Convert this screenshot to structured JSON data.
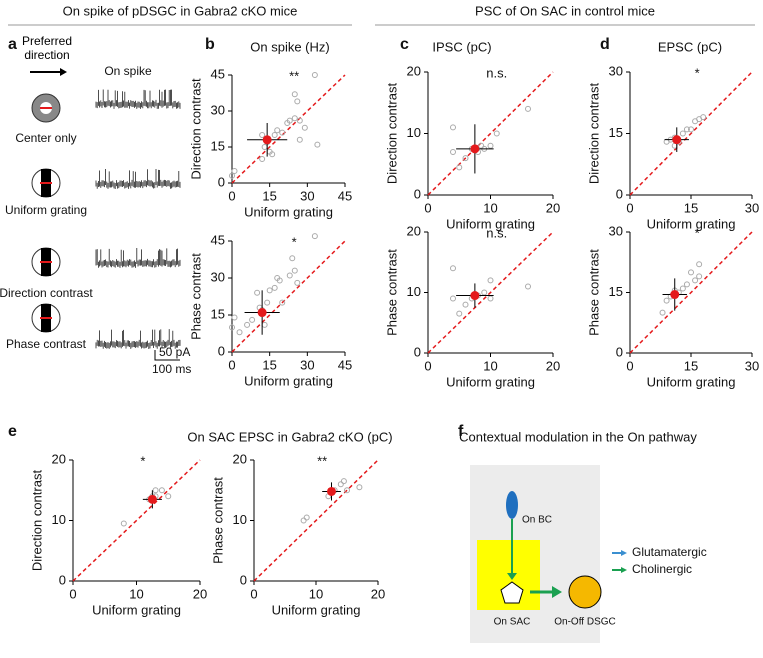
{
  "headers": [
    "On spike of pDSGC in Gabra2 cKO mice",
    "PSC of On SAC in control mice"
  ],
  "panel_labels": [
    "a",
    "b",
    "c",
    "d",
    "e",
    "f"
  ],
  "panel_a": {
    "direction_label": "Preferred direction",
    "trace_title": "On spike",
    "conditions": [
      "Center only",
      "Uniform grating",
      "Direction contrast",
      "Phase contrast"
    ],
    "scale_y": "50 pA",
    "scale_x": "100 ms"
  },
  "panel_f": {
    "title": "Contextual modulation in the On pathway",
    "nodes": [
      "On BC",
      "On SAC",
      "On-Off DSGC"
    ],
    "legend": [
      {
        "name": "Glutamatergic",
        "color": "#3a8fd0"
      },
      {
        "name": "Cholinergic",
        "color": "#1aa050"
      }
    ]
  },
  "chart_data": [
    {
      "type": "scatter",
      "title": "On spike (Hz)",
      "xlabel": "Uniform grating",
      "ylabel": "Direction contrast",
      "annotation": "**",
      "xlim": [
        0,
        45
      ],
      "ylim": [
        0,
        45
      ],
      "xticks": [
        0,
        15,
        30,
        45
      ],
      "yticks": [
        0,
        15,
        30,
        45
      ],
      "color": "#aaaaaa",
      "mean_color": "#e41a1c",
      "x": [
        0,
        1,
        12,
        13,
        14,
        15,
        16,
        17,
        18,
        20,
        22,
        23,
        25,
        25,
        26,
        27,
        27,
        29,
        33,
        34,
        12
      ],
      "y": [
        3,
        5,
        20,
        15,
        17,
        13,
        12,
        20,
        22,
        21,
        25,
        26,
        27,
        37,
        34,
        26,
        18,
        23,
        45,
        16,
        10
      ],
      "mean": {
        "x": 14,
        "y": 18,
        "xerr": 8,
        "yerr": 7
      }
    },
    {
      "type": "scatter",
      "xlabel": "Uniform grating",
      "ylabel": "Phase contrast",
      "annotation": "*",
      "xlim": [
        0,
        45
      ],
      "ylim": [
        0,
        45
      ],
      "xticks": [
        0,
        15,
        30,
        45
      ],
      "yticks": [
        0,
        15,
        30,
        45
      ],
      "color": "#aaaaaa",
      "mean_color": "#e41a1c",
      "x": [
        0,
        1,
        3,
        6,
        8,
        10,
        11,
        12,
        13,
        14,
        15,
        17,
        18,
        19,
        20,
        23,
        24,
        25,
        26,
        33
      ],
      "y": [
        10,
        14,
        8,
        11,
        13,
        24,
        18,
        17,
        11,
        20,
        25,
        26,
        30,
        29,
        20,
        31,
        38,
        33,
        28,
        47
      ],
      "mean": {
        "x": 12,
        "y": 16,
        "xerr": 7,
        "yerr": 9
      }
    },
    {
      "type": "scatter",
      "title": "IPSC (pC)",
      "xlabel": "Uniform grating",
      "ylabel": "Direction contrast",
      "annotation": "n.s.",
      "xlim": [
        0,
        20
      ],
      "ylim": [
        0,
        20
      ],
      "xticks": [
        0,
        10,
        20
      ],
      "yticks": [
        0,
        10,
        20
      ],
      "color": "#aaaaaa",
      "mean_color": "#e41a1c",
      "x": [
        4,
        4,
        5,
        6,
        7,
        8,
        8.5,
        9,
        10,
        11,
        16
      ],
      "y": [
        11,
        7,
        4.5,
        6,
        7.5,
        7,
        8,
        7.5,
        8,
        10,
        14
      ],
      "mean": {
        "x": 7.5,
        "y": 7.5,
        "xerr": 3,
        "yerr": 4
      }
    },
    {
      "type": "scatter",
      "xlabel": "Uniform grating",
      "ylabel": "Phase contrast",
      "annotation": "n.s.",
      "xlim": [
        0,
        20
      ],
      "ylim": [
        0,
        20
      ],
      "xticks": [
        0,
        10,
        20
      ],
      "yticks": [
        0,
        10,
        20
      ],
      "color": "#aaaaaa",
      "mean_color": "#e41a1c",
      "x": [
        4,
        4,
        5,
        6,
        7,
        8,
        9,
        10,
        10,
        16
      ],
      "y": [
        14,
        9,
        6.5,
        8,
        9,
        9.5,
        10,
        12,
        9,
        11
      ],
      "mean": {
        "x": 7.5,
        "y": 9.5,
        "xerr": 3,
        "yerr": 2
      }
    },
    {
      "type": "scatter",
      "title": "EPSC (pC)",
      "xlabel": "Uniform grating",
      "ylabel": "Direction contrast",
      "annotation": "*",
      "xlim": [
        0,
        30
      ],
      "ylim": [
        0,
        30
      ],
      "xticks": [
        0,
        15,
        30
      ],
      "yticks": [
        0,
        15,
        30
      ],
      "color": "#aaaaaa",
      "mean_color": "#e41a1c",
      "x": [
        9,
        10,
        11,
        11,
        12,
        13,
        14,
        15,
        16,
        17,
        18
      ],
      "y": [
        13,
        13.5,
        14,
        12,
        13,
        15,
        16,
        16,
        18,
        18.5,
        19
      ],
      "mean": {
        "x": 11.5,
        "y": 13.5,
        "xerr": 3,
        "yerr": 3
      }
    },
    {
      "type": "scatter",
      "xlabel": "Uniform grating",
      "ylabel": "Phase contrast",
      "annotation": "*",
      "xlim": [
        0,
        30
      ],
      "ylim": [
        0,
        30
      ],
      "xticks": [
        0,
        15,
        30
      ],
      "yticks": [
        0,
        15,
        30
      ],
      "color": "#aaaaaa",
      "mean_color": "#e41a1c",
      "x": [
        8,
        9,
        10,
        11,
        12,
        13,
        14,
        15,
        16,
        17,
        17
      ],
      "y": [
        10,
        13,
        14,
        15.5,
        15,
        16,
        17,
        20,
        18,
        19,
        22
      ],
      "mean": {
        "x": 11,
        "y": 14.5,
        "xerr": 3,
        "yerr": 4
      }
    },
    {
      "type": "scatter",
      "title": "On SAC EPSC in Gabra2 cKO (pC)",
      "xlabel": "Uniform grating",
      "ylabel": "Direction contrast",
      "annotation": "*",
      "xlim": [
        0,
        20
      ],
      "ylim": [
        0,
        20
      ],
      "xticks": [
        0,
        10,
        20
      ],
      "yticks": [
        0,
        10,
        20
      ],
      "color": "#aaaaaa",
      "mean_color": "#e41a1c",
      "x": [
        8,
        12,
        12.5,
        13,
        13,
        14,
        15
      ],
      "y": [
        9.5,
        13.5,
        14,
        15,
        14,
        15,
        14
      ],
      "mean": {
        "x": 12.5,
        "y": 13.5,
        "xerr": 1.5,
        "yerr": 1.5
      }
    },
    {
      "type": "scatter",
      "xlabel": "Uniform grating",
      "ylabel": "Phase contrast",
      "annotation": "**",
      "xlim": [
        0,
        20
      ],
      "ylim": [
        0,
        20
      ],
      "xticks": [
        0,
        10,
        20
      ],
      "yticks": [
        0,
        10,
        20
      ],
      "color": "#aaaaaa",
      "mean_color": "#e41a1c",
      "x": [
        8,
        8.5,
        12,
        13,
        14,
        14.5,
        15,
        17
      ],
      "y": [
        10,
        10.5,
        14,
        15,
        16,
        16.5,
        15,
        15.5
      ],
      "mean": {
        "x": 12.5,
        "y": 14.8,
        "xerr": 1.5,
        "yerr": 1.5
      }
    }
  ]
}
